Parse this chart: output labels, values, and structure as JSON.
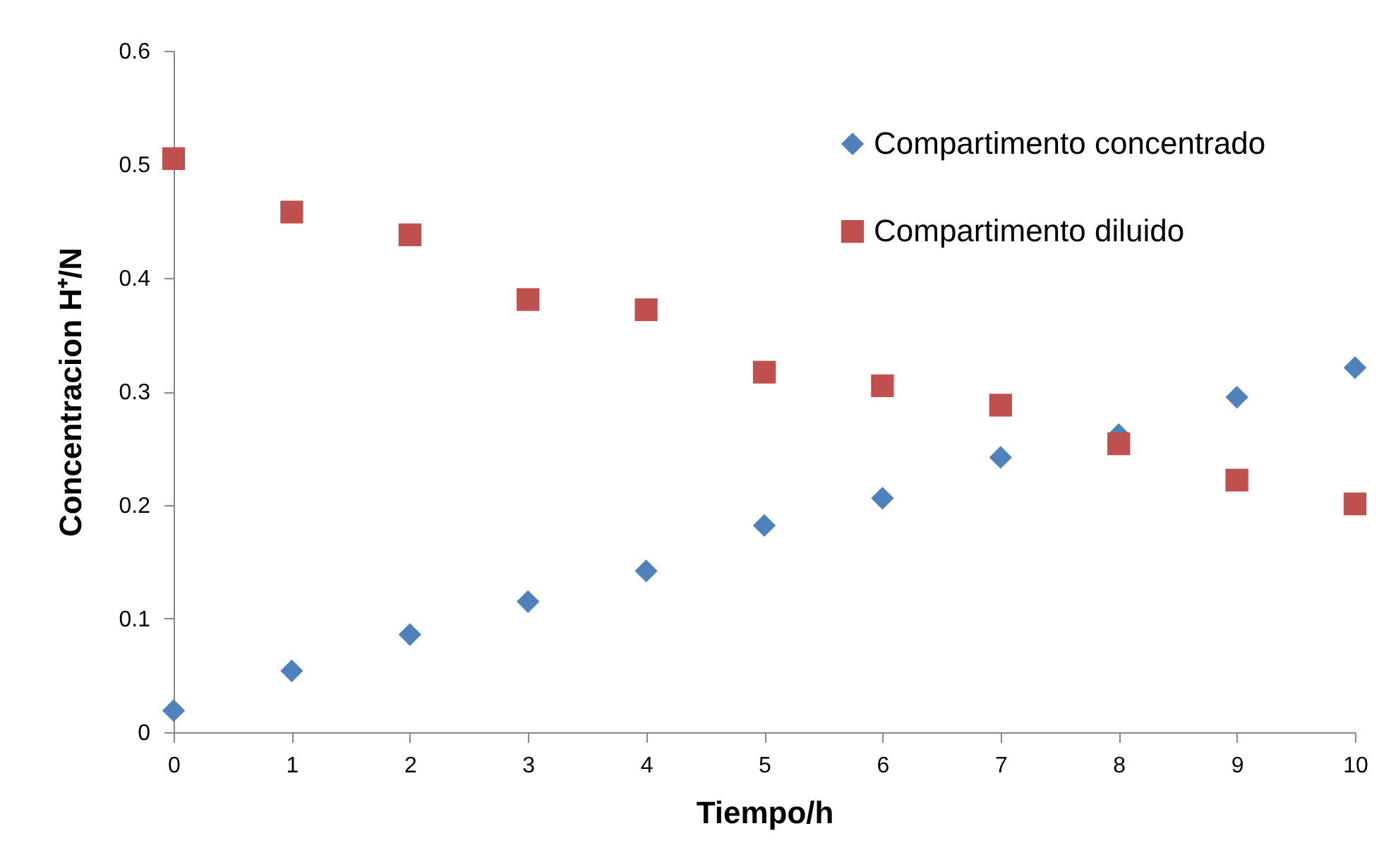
{
  "chart_data": {
    "type": "scatter",
    "xlabel": "Tiempo/h",
    "ylabel": "Concentracion H⁺/N",
    "x": [
      0,
      1,
      2,
      3,
      4,
      5,
      6,
      7,
      8,
      9,
      10
    ],
    "series": [
      {
        "name": "Compartimento concentrado",
        "color": "#4f81bd",
        "marker": "diamond",
        "values": [
          0.019,
          0.054,
          0.086,
          0.115,
          0.142,
          0.182,
          0.206,
          0.242,
          0.262,
          0.295,
          0.321
        ]
      },
      {
        "name": "Compartimento diluido",
        "color": "#c0504d",
        "marker": "square",
        "values": [
          0.505,
          0.458,
          0.438,
          0.381,
          0.372,
          0.317,
          0.305,
          0.288,
          0.254,
          0.222,
          0.201
        ]
      }
    ],
    "xlim": [
      0,
      10
    ],
    "xticks": [
      0,
      1,
      2,
      3,
      4,
      5,
      6,
      7,
      8,
      9,
      10
    ],
    "ylim": [
      0,
      0.6
    ],
    "yticks": [
      0,
      0.1,
      0.2,
      0.3,
      0.4,
      0.5,
      0.6
    ],
    "grid": false,
    "legend": "top right"
  }
}
